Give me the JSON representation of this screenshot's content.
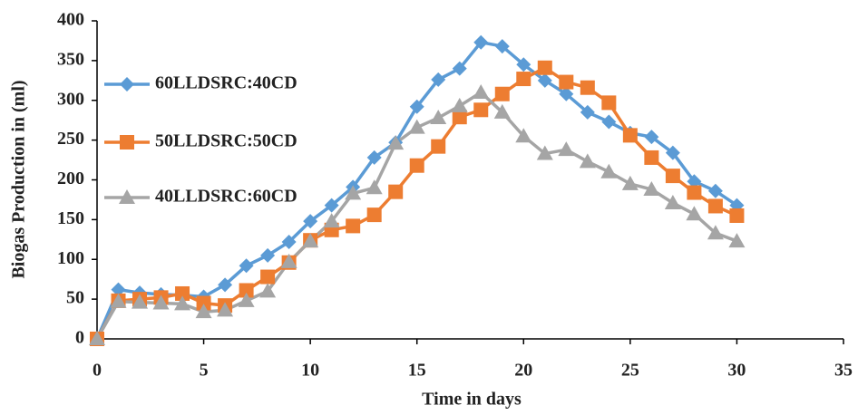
{
  "chart_data": {
    "type": "line",
    "x_label": "Time in days",
    "y_label": "Biogas Production in (ml)",
    "x": [
      0,
      1,
      2,
      3,
      4,
      5,
      6,
      7,
      8,
      9,
      10,
      11,
      12,
      13,
      14,
      15,
      16,
      17,
      18,
      19,
      20,
      21,
      22,
      23,
      24,
      25,
      26,
      27,
      28,
      29,
      30
    ],
    "series": [
      {
        "name": "60LLDSRC:40CD",
        "color": "#5b9bd5",
        "marker": "diamond",
        "values": [
          0,
          62,
          58,
          56,
          55,
          53,
          68,
          92,
          105,
          122,
          148,
          168,
          191,
          228,
          247,
          292,
          326,
          340,
          373,
          368,
          345,
          325,
          308,
          285,
          273,
          259,
          254,
          234,
          198,
          186,
          168
        ]
      },
      {
        "name": "50LLDSRC:50CD",
        "color": "#ed7d31",
        "marker": "square",
        "values": [
          0,
          48,
          50,
          52,
          57,
          45,
          42,
          61,
          78,
          96,
          124,
          137,
          142,
          156,
          185,
          218,
          242,
          279,
          288,
          308,
          327,
          341,
          323,
          316,
          297,
          256,
          228,
          205,
          184,
          167,
          155
        ]
      },
      {
        "name": "40LLDSRC:60CD",
        "color": "#a5a5a5",
        "marker": "triangle",
        "values": [
          0,
          47,
          46,
          45,
          44,
          34,
          36,
          48,
          60,
          97,
          123,
          148,
          183,
          190,
          246,
          266,
          278,
          293,
          310,
          285,
          255,
          233,
          238,
          223,
          210,
          195,
          188,
          171,
          157,
          133,
          123
        ]
      }
    ],
    "xlim": [
      0,
      35
    ],
    "xticks": [
      0,
      5,
      10,
      15,
      20,
      25,
      30,
      35
    ],
    "ylim": [
      0,
      400
    ],
    "yticks": [
      0,
      50,
      100,
      150,
      200,
      250,
      300,
      350,
      400
    ],
    "grid": false,
    "legend": "left"
  }
}
